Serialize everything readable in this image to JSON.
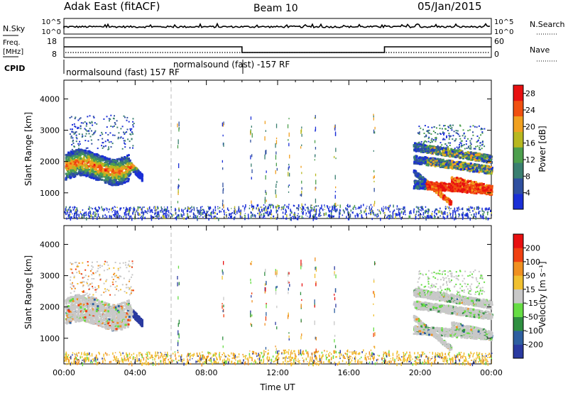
{
  "header": {
    "station": "Adak East (fitACF)",
    "beam": "Beam 10",
    "date": "05/Jan/2015"
  },
  "nsky_panel": {
    "left_label": "N.Sky",
    "left_ticks": [
      "10^5",
      "10^0"
    ],
    "right_label": "N.Search",
    "right_ticks": [
      "10^5",
      "10^0"
    ]
  },
  "freq_panel": {
    "left_label_1": "Freq.",
    "left_label_2": "[MHz]",
    "left_ticks": [
      "18",
      "8"
    ],
    "right_label": "Nave",
    "right_ticks": [
      "60",
      "0"
    ]
  },
  "cpid_panel": {
    "label": "CPID",
    "programs": [
      "normalsound (fast) 157 RF",
      "normalsound (fast) -157 RF"
    ]
  },
  "colors": {
    "power": [
      "#1a2fd6",
      "#2f4f9f",
      "#3a7f70",
      "#4d9f4d",
      "#b8b820",
      "#f0a020",
      "#f05010",
      "#e81010"
    ],
    "velocity": [
      "#2a3aa0",
      "#2e5fa0",
      "#2f8f40",
      "#66dd44",
      "#c8c8c8",
      "#f0c030",
      "#f09020",
      "#f04010",
      "#e81010"
    ]
  },
  "chart_data": [
    {
      "type": "heatmap",
      "name": "power",
      "ylabel": "Slant Range [km]",
      "ylim": [
        180,
        4600
      ],
      "yticks": [
        "1000",
        "2000",
        "3000",
        "4000"
      ],
      "xlim_hours": [
        0,
        24
      ],
      "xticks": [
        "00:00",
        "04:00",
        "08:00",
        "12:00",
        "16:00",
        "20:00",
        "00:00"
      ],
      "colorbar_label": "Power [dB]",
      "colorbar_ticks": [
        "4",
        "8",
        "12",
        "16",
        "20",
        "24",
        "28"
      ],
      "colorbar_range": [
        0,
        30
      ],
      "regions": [
        {
          "x": [
            0.1,
            4.3
          ],
          "y": [
            1450,
            2300
          ],
          "level": "high"
        },
        {
          "x": [
            0.1,
            4.0
          ],
          "y": [
            2300,
            3500
          ],
          "level": "low"
        },
        {
          "x": [
            19.6,
            24.0
          ],
          "y": [
            800,
            2600
          ],
          "level": "high"
        },
        {
          "x": [
            20.2,
            21.6
          ],
          "y": [
            500,
            1200
          ],
          "level": "mid"
        }
      ]
    },
    {
      "type": "heatmap",
      "name": "velocity",
      "ylabel": "Slant Range [km]",
      "ylim": [
        180,
        4600
      ],
      "yticks": [
        "1000",
        "2000",
        "3000",
        "4000"
      ],
      "xlim_hours": [
        0,
        24
      ],
      "xticks": [
        "00:00",
        "04:00",
        "08:00",
        "12:00",
        "16:00",
        "20:00",
        "00:00"
      ],
      "xlabel": "Time UT",
      "colorbar_label": "Velocity [m s⁻¹]",
      "colorbar_ticks": [
        "200",
        "100",
        "50",
        "15",
        "-15",
        "-50",
        "-100",
        "-200"
      ],
      "colorbar_range": [
        -250,
        250
      ],
      "regions": [
        {
          "x": [
            0.1,
            4.3
          ],
          "y": [
            1300,
            2300
          ],
          "dominant": "-15..15"
        },
        {
          "x": [
            19.6,
            24.0
          ],
          "y": [
            900,
            2600
          ],
          "dominant": "-15..15"
        }
      ]
    }
  ]
}
